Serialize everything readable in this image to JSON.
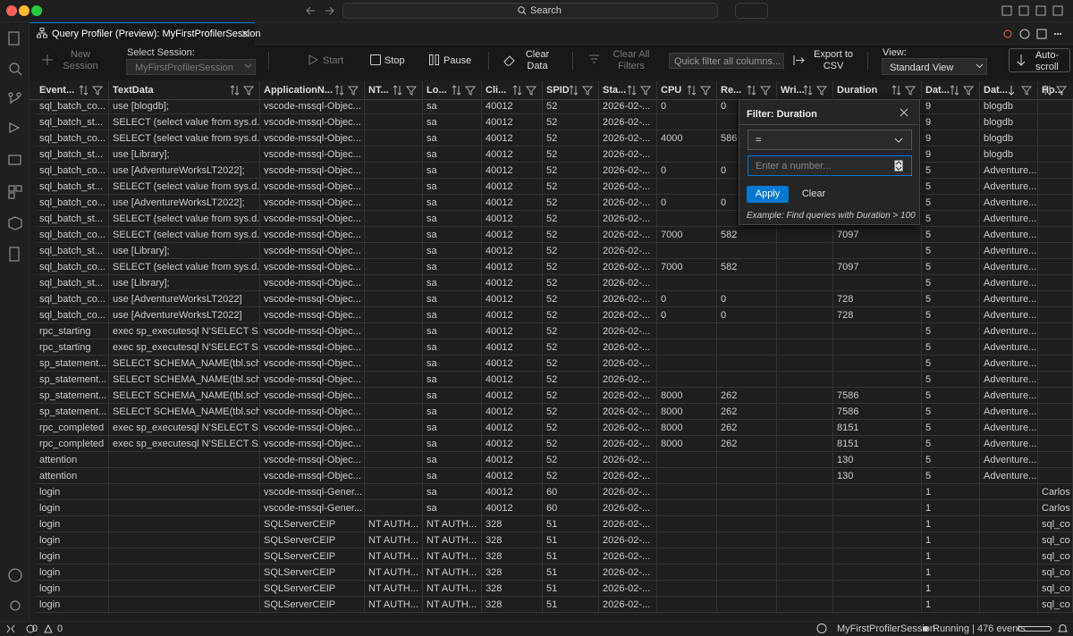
{
  "titlebar": {
    "search": "Search"
  },
  "tab": {
    "title": "Query Profiler (Preview): MyFirstProfilerSession"
  },
  "toolbar": {
    "new_session": "New Session",
    "select_session_label": "Select Session:",
    "session": "MyFirstProfilerSession",
    "start": "Start",
    "stop": "Stop",
    "pause": "Pause",
    "clear_data": "Clear Data",
    "clear_all_filters": "Clear All Filters",
    "quick_filter_placeholder": "Quick filter all columns...",
    "export": "Export to CSV",
    "view_label": "View:",
    "view": "Standard View",
    "auto_scroll": "Auto-scroll"
  },
  "table": {
    "columns": [
      "Event...",
      "TextData",
      "ApplicationN...",
      "NT...",
      "Lo...",
      "Cli...",
      "SPID",
      "Sta...",
      "CPU",
      "Re...",
      "Wri...",
      "Duration",
      "Dat...",
      "Dat...",
      "Ho..."
    ],
    "rows": [
      [
        "sql_batch_co...",
        "use [blogdb];",
        "vscode-mssql-Objec...",
        null,
        "sa",
        "40012",
        "52",
        "2026-02-...",
        "0",
        "0",
        null,
        null,
        "9",
        "blogdb",
        null
      ],
      [
        "sql_batch_st...",
        "SELECT (select value from sys.d...",
        "vscode-mssql-Objec...",
        null,
        "sa",
        "40012",
        "52",
        "2026-02-...",
        null,
        null,
        null,
        null,
        "9",
        "blogdb",
        null
      ],
      [
        "sql_batch_co...",
        "SELECT (select value from sys.d...",
        "vscode-mssql-Objec...",
        null,
        "sa",
        "40012",
        "52",
        "2026-02-...",
        "4000",
        "586",
        null,
        null,
        "9",
        "blogdb",
        null
      ],
      [
        "sql_batch_st...",
        "use [Library];",
        "vscode-mssql-Objec...",
        null,
        "sa",
        "40012",
        "52",
        "2026-02-...",
        null,
        null,
        null,
        null,
        "9",
        "blogdb",
        null
      ],
      [
        "sql_batch_co...",
        "use [AdventureWorksLT2022];",
        "vscode-mssql-Objec...",
        null,
        "sa",
        "40012",
        "52",
        "2026-02-...",
        "0",
        "0",
        null,
        null,
        "5",
        "Adventure...",
        null
      ],
      [
        "sql_batch_st...",
        "SELECT (select value from sys.d...",
        "vscode-mssql-Objec...",
        null,
        "sa",
        "40012",
        "52",
        "2026-02-...",
        null,
        null,
        null,
        null,
        "5",
        "Adventure...",
        null
      ],
      [
        "sql_batch_co...",
        "use [AdventureWorksLT2022];",
        "vscode-mssql-Objec...",
        null,
        "sa",
        "40012",
        "52",
        "2026-02-...",
        "0",
        "0",
        null,
        null,
        "5",
        "Adventure...",
        null
      ],
      [
        "sql_batch_st...",
        "SELECT (select value from sys.d...",
        "vscode-mssql-Objec...",
        null,
        "sa",
        "40012",
        "52",
        "2026-02-...",
        null,
        null,
        null,
        null,
        "5",
        "Adventure...",
        null
      ],
      [
        "sql_batch_co...",
        "SELECT (select value from sys.d...",
        "vscode-mssql-Objec...",
        null,
        "sa",
        "40012",
        "52",
        "2026-02-...",
        "7000",
        "582",
        null,
        "7097",
        "5",
        "Adventure...",
        null
      ],
      [
        "sql_batch_st...",
        "use [Library];",
        "vscode-mssql-Objec...",
        null,
        "sa",
        "40012",
        "52",
        "2026-02-...",
        null,
        null,
        null,
        null,
        "5",
        "Adventure...",
        null
      ],
      [
        "sql_batch_co...",
        "SELECT (select value from sys.d...",
        "vscode-mssql-Objec...",
        null,
        "sa",
        "40012",
        "52",
        "2026-02-...",
        "7000",
        "582",
        null,
        "7097",
        "5",
        "Adventure...",
        null
      ],
      [
        "sql_batch_st...",
        "use [Library];",
        "vscode-mssql-Objec...",
        null,
        "sa",
        "40012",
        "52",
        "2026-02-...",
        null,
        null,
        null,
        null,
        "5",
        "Adventure...",
        null
      ],
      [
        "sql_batch_co...",
        "use [AdventureWorksLT2022]",
        "vscode-mssql-Objec...",
        null,
        "sa",
        "40012",
        "52",
        "2026-02-...",
        "0",
        "0",
        null,
        "728",
        "5",
        "Adventure...",
        null
      ],
      [
        "sql_batch_co...",
        "use [AdventureWorksLT2022]",
        "vscode-mssql-Objec...",
        null,
        "sa",
        "40012",
        "52",
        "2026-02-...",
        "0",
        "0",
        null,
        "728",
        "5",
        "Adventure...",
        null
      ],
      [
        "rpc_starting",
        "exec sp_executesql N'SELECT S...",
        "vscode-mssql-Objec...",
        null,
        "sa",
        "40012",
        "52",
        "2026-02-...",
        null,
        null,
        null,
        null,
        "5",
        "Adventure...",
        null
      ],
      [
        "rpc_starting",
        "exec sp_executesql N'SELECT S...",
        "vscode-mssql-Objec...",
        null,
        "sa",
        "40012",
        "52",
        "2026-02-...",
        null,
        null,
        null,
        null,
        "5",
        "Adventure...",
        null
      ],
      [
        "sp_statement...",
        "SELECT SCHEMA_NAME(tbl.sch...",
        "vscode-mssql-Objec...",
        null,
        "sa",
        "40012",
        "52",
        "2026-02-...",
        null,
        null,
        null,
        null,
        "5",
        "Adventure...",
        null
      ],
      [
        "sp_statement...",
        "SELECT SCHEMA_NAME(tbl.sch...",
        "vscode-mssql-Objec...",
        null,
        "sa",
        "40012",
        "52",
        "2026-02-...",
        null,
        null,
        null,
        null,
        "5",
        "Adventure...",
        null
      ],
      [
        "sp_statement...",
        "SELECT SCHEMA_NAME(tbl.sch...",
        "vscode-mssql-Objec...",
        null,
        "sa",
        "40012",
        "52",
        "2026-02-...",
        "8000",
        "262",
        null,
        "7586",
        "5",
        "Adventure...",
        null
      ],
      [
        "sp_statement...",
        "SELECT SCHEMA_NAME(tbl.sch...",
        "vscode-mssql-Objec...",
        null,
        "sa",
        "40012",
        "52",
        "2026-02-...",
        "8000",
        "262",
        null,
        "7586",
        "5",
        "Adventure...",
        null
      ],
      [
        "rpc_completed",
        "exec sp_executesql N'SELECT S...",
        "vscode-mssql-Objec...",
        null,
        "sa",
        "40012",
        "52",
        "2026-02-...",
        "8000",
        "262",
        null,
        "8151",
        "5",
        "Adventure...",
        null
      ],
      [
        "rpc_completed",
        "exec sp_executesql N'SELECT S...",
        "vscode-mssql-Objec...",
        null,
        "sa",
        "40012",
        "52",
        "2026-02-...",
        "8000",
        "262",
        null,
        "8151",
        "5",
        "Adventure...",
        null
      ],
      [
        "attention",
        null,
        "vscode-mssql-Objec...",
        null,
        "sa",
        "40012",
        "52",
        "2026-02-...",
        null,
        null,
        null,
        "130",
        "5",
        "Adventure...",
        null
      ],
      [
        "attention",
        null,
        "vscode-mssql-Objec...",
        null,
        "sa",
        "40012",
        "52",
        "2026-02-...",
        null,
        null,
        null,
        "130",
        "5",
        "Adventure...",
        null
      ],
      [
        "login",
        null,
        "vscode-mssql-Gener...",
        null,
        "sa",
        "40012",
        "60",
        "2026-02-...",
        null,
        null,
        null,
        null,
        "1",
        null,
        "Carlos"
      ],
      [
        "login",
        null,
        "vscode-mssql-Gener...",
        null,
        "sa",
        "40012",
        "60",
        "2026-02-...",
        null,
        null,
        null,
        null,
        "1",
        null,
        "Carlos"
      ],
      [
        "login",
        null,
        "SQLServerCEIP",
        "NT AUTH...",
        "NT AUTH...",
        "328",
        "51",
        "2026-02-...",
        null,
        null,
        null,
        null,
        "1",
        null,
        "sql_co"
      ],
      [
        "login",
        null,
        "SQLServerCEIP",
        "NT AUTH...",
        "NT AUTH...",
        "328",
        "51",
        "2026-02-...",
        null,
        null,
        null,
        null,
        "1",
        null,
        "sql_co"
      ],
      [
        "login",
        null,
        "SQLServerCEIP",
        "NT AUTH...",
        "NT AUTH...",
        "328",
        "51",
        "2026-02-...",
        null,
        null,
        null,
        null,
        "1",
        null,
        "sql_co"
      ],
      [
        "login",
        null,
        "SQLServerCEIP",
        "NT AUTH...",
        "NT AUTH...",
        "328",
        "51",
        "2026-02-...",
        null,
        null,
        null,
        null,
        "1",
        null,
        "sql_co"
      ],
      [
        "login",
        null,
        "SQLServerCEIP",
        "NT AUTH...",
        "NT AUTH...",
        "328",
        "51",
        "2026-02-...",
        null,
        null,
        null,
        null,
        "1",
        null,
        "sql_co"
      ],
      [
        "login",
        null,
        "SQLServerCEIP",
        "NT AUTH...",
        "NT AUTH...",
        "328",
        "51",
        "2026-02-...",
        null,
        null,
        null,
        null,
        "1",
        null,
        "sql_co"
      ]
    ]
  },
  "filter_popup": {
    "title": "Filter: Duration",
    "operator": "=",
    "input_placeholder": "Enter a number...",
    "apply": "Apply",
    "clear": "Clear",
    "example": "Example: Find queries with Duration > 100"
  },
  "status_bar": {
    "errors": 0,
    "warnings": 0,
    "session": "MyFirstProfilerSession",
    "status": "Running | 476 events"
  }
}
